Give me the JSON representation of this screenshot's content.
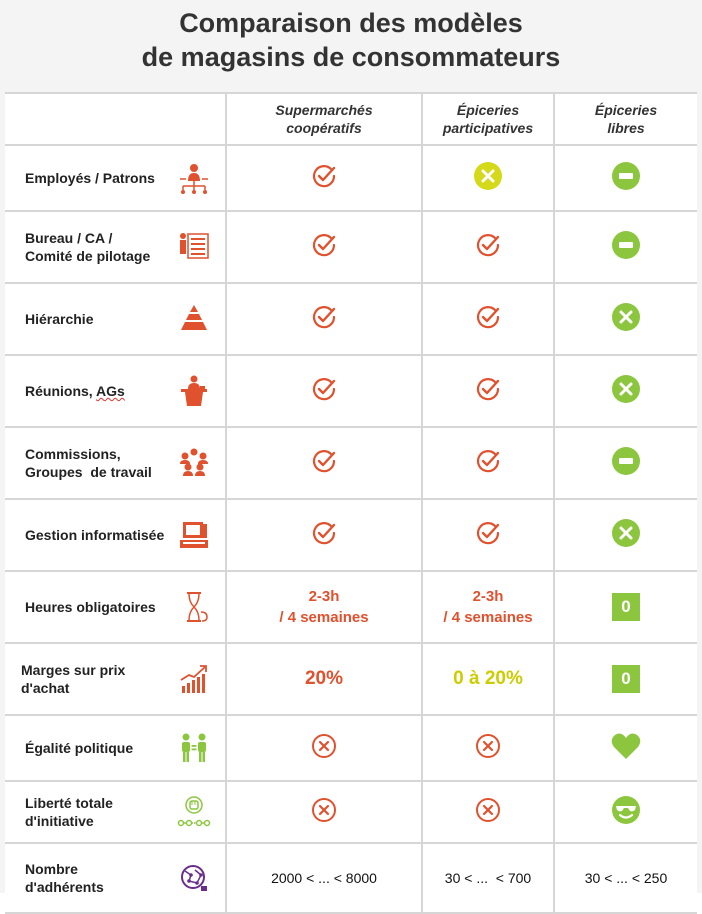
{
  "title": {
    "line1": "Comparaison des modèles",
    "line2": "de magasins de consommateurs"
  },
  "columns": [
    {
      "line1": "Supermarchés",
      "line2": "coopératifs"
    },
    {
      "line1": "Épiceries",
      "line2": "participatives"
    },
    {
      "line1": "Épiceries",
      "line2": "libres"
    }
  ],
  "colors": {
    "red": "#e0512e",
    "green": "#8cc63f",
    "yellow": "#d4d91a",
    "yellow_text": "#cccc00",
    "purple": "#6b2d8c",
    "grid": "#d6d6d6"
  },
  "rows": [
    {
      "label1": "Employés / Patrons",
      "label2": "",
      "icon": "org-chart-icon",
      "values": [
        "check-red",
        "x-yellow",
        "minus-green"
      ]
    },
    {
      "label1": "Bureau / CA /",
      "label2": "Comité de pilotage",
      "icon": "list-board-icon",
      "values": [
        "check-red",
        "check-red",
        "minus-green"
      ]
    },
    {
      "label1": "Hiérarchie",
      "label2": "",
      "icon": "pyramid-icon",
      "values": [
        "check-red",
        "check-red",
        "x-green"
      ]
    },
    {
      "label1": "Réunions, ",
      "label1b": "AGs",
      "label2": "",
      "icon": "podium-icon",
      "values": [
        "check-red",
        "check-red",
        "x-green"
      ]
    },
    {
      "label1": "Commissions,",
      "label2": "Groupes  de travail",
      "icon": "group-icon",
      "values": [
        "check-red",
        "check-red",
        "minus-green"
      ]
    },
    {
      "label1": "Gestion informatisée",
      "label2": "",
      "icon": "computer-icon",
      "values": [
        "check-red",
        "check-red",
        "x-green"
      ]
    },
    {
      "label1": "Heures obligatoires",
      "label2": "",
      "icon": "hourglass-icon",
      "text_values": [
        {
          "line1": "2-3h",
          "line2": "/ 4 semaines"
        },
        {
          "line1": "2-3h",
          "line2": "/ 4 semaines"
        },
        {
          "zero": "0"
        }
      ]
    },
    {
      "label1": "Marges sur prix",
      "label2": "d'achat",
      "icon": "growth-chart-icon",
      "text_values": [
        {
          "big_red": "20%"
        },
        {
          "big_yellow": "0 à 20%"
        },
        {
          "zero": "0"
        }
      ]
    },
    {
      "label1": "Égalité politique",
      "label2": "",
      "icon": "equality-people-icon",
      "values": [
        "x-outline-red",
        "x-outline-red",
        "heart-green"
      ]
    },
    {
      "label1": "Liberté totale",
      "label2": "d'initiative",
      "icon": "raised-fist-icon",
      "values": [
        "x-outline-red",
        "x-outline-red",
        "smiley-green"
      ]
    },
    {
      "label1": "Nombre",
      "label2": "d'adhérents",
      "icon": "globe-network-icon",
      "text_values": [
        {
          "plain": "2000 < ... < 8000"
        },
        {
          "plain": "30 < ...  < 700"
        },
        {
          "plain": "30 < ... < 250"
        }
      ]
    }
  ]
}
